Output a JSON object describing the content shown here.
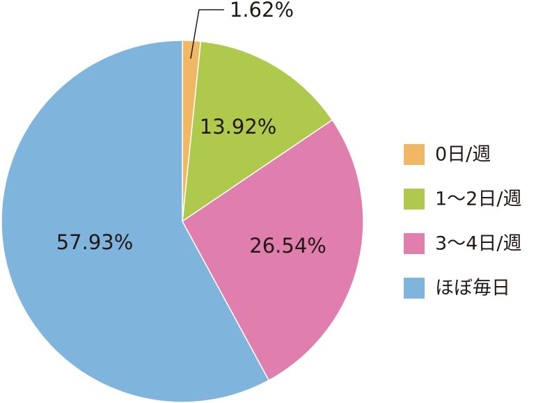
{
  "chart_data": {
    "type": "pie",
    "categories": [
      "0日/週",
      "1～2日/週",
      "3～4日/週",
      "ほぼ毎日"
    ],
    "values": [
      1.62,
      13.92,
      26.54,
      57.93
    ],
    "value_labels": [
      "1.62%",
      "13.92%",
      "26.54%",
      "57.93%"
    ],
    "colors": [
      "#f0b865",
      "#afc94d",
      "#e07fae",
      "#7fb5dd"
    ],
    "legend": "right"
  }
}
